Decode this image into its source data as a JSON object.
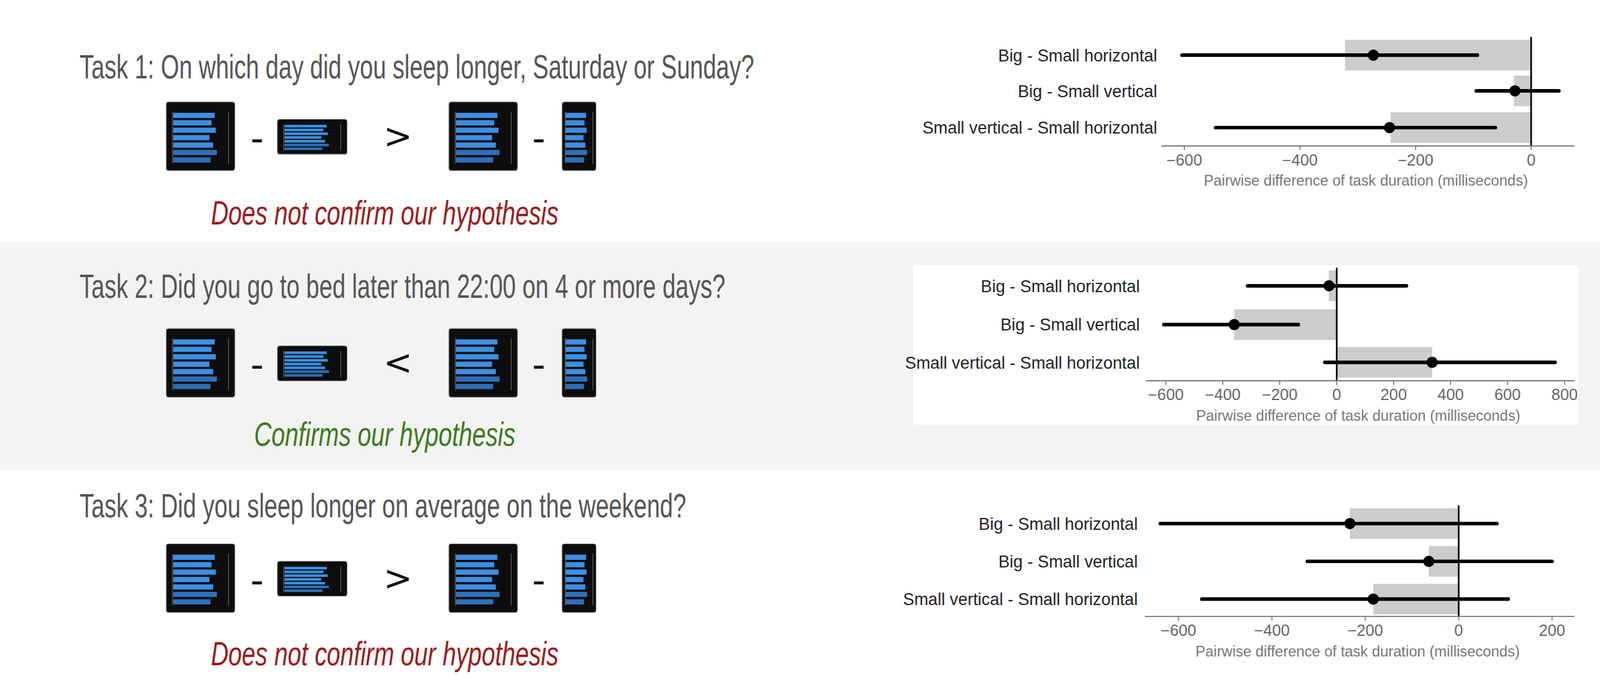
{
  "chart_data": [
    {
      "type": "bar",
      "orientation": "horizontal",
      "title": "Task 1: On which day did you sleep longer, Saturday or Sunday?",
      "annotations": [
        {
          "text": "-"
        },
        {
          "text": ">"
        },
        {
          "text": "-"
        },
        {
          "text": "Does not confirm our hypothesis",
          "color": "#9b1b1b"
        }
      ],
      "categories": [
        "Big - Small horizontal",
        "Big - Small vertical",
        "Small vertical - Small horizontal"
      ],
      "values": [
        -322,
        -30,
        -243
      ],
      "points": [
        -273,
        -28,
        -245
      ],
      "ci_low": [
        -604,
        -95,
        -546
      ],
      "ci_high": [
        -93,
        48,
        -62
      ],
      "color": "#cccccc",
      "x_label": "Pairwise difference of task duration (milliseconds)",
      "xlim": [
        -640,
        75
      ],
      "xticks": [
        {
          "value": -600,
          "label": "−600"
        },
        {
          "value": -400,
          "label": "−400"
        },
        {
          "value": -200,
          "label": "−200"
        },
        0
      ]
    },
    {
      "type": "bar",
      "orientation": "horizontal",
      "title": "Task 2: Did you go to bed later than 22:00 on 4 or more days?",
      "annotations": [
        {
          "text": "-"
        },
        {
          "text": "<"
        },
        {
          "text": "-"
        },
        {
          "text": "Confirms our hypothesis",
          "color": "#3d7a1e"
        }
      ],
      "categories": [
        "Big - Small horizontal",
        "Big - Small vertical",
        "Small vertical - Small horizontal"
      ],
      "values": [
        -28,
        -360,
        335
      ],
      "points": [
        -27,
        -360,
        335
      ],
      "ci_low": [
        -313,
        -607,
        -42
      ],
      "ci_high": [
        245,
        -135,
        767
      ],
      "color": "#cccccc",
      "x_label": "Pairwise difference of task duration (milliseconds)",
      "xlim": [
        -670,
        835
      ],
      "xticks": [
        {
          "value": -600,
          "label": "−600"
        },
        {
          "value": -400,
          "label": "−400"
        },
        {
          "value": -200,
          "label": "−200"
        },
        0,
        200,
        400,
        600,
        800
      ]
    },
    {
      "type": "bar",
      "orientation": "horizontal",
      "title": "Task 3: Did you sleep longer on average on the weekend?",
      "annotations": [
        {
          "text": "-"
        },
        {
          "text": ">"
        },
        {
          "text": "-"
        },
        {
          "text": "Does not confirm our hypothesis",
          "color": "#9b1b1b"
        }
      ],
      "categories": [
        "Big - Small horizontal",
        "Big - Small vertical",
        "Small vertical - Small horizontal"
      ],
      "values": [
        -233,
        -64,
        -183
      ],
      "points": [
        -233,
        -64,
        -183
      ],
      "ci_low": [
        -639,
        -324,
        -550
      ],
      "ci_high": [
        82,
        200,
        106
      ],
      "color": "#cccccc",
      "x_label": "Pairwise difference of task duration (milliseconds)",
      "xlim": [
        -672,
        248
      ],
      "xticks": [
        {
          "value": -600,
          "label": "−600"
        },
        {
          "value": -400,
          "label": "−400"
        },
        {
          "value": -200,
          "label": "−200"
        },
        0,
        200
      ]
    }
  ]
}
